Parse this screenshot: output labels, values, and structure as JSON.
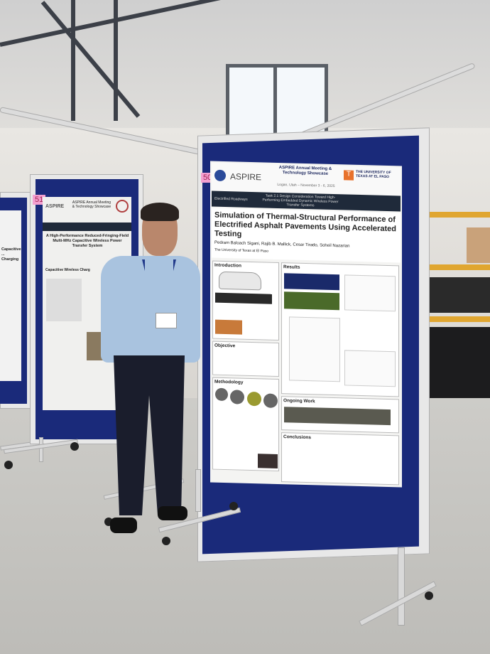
{
  "booths": {
    "right_number": "50",
    "left_number": "51"
  },
  "right_poster": {
    "event_title": "ASPIRE Annual Meeting & Technology Showcase",
    "event_location_date": "Logan, Utah – November 3 - 6, 2025",
    "logo_text": "ASPIRE",
    "university": "THE UNIVERSITY OF TEXAS AT EL PASO",
    "university_logo_letter": "T",
    "band_left": "Electrified Roadways",
    "band_middle": "Task 2.1 Design Consideration Toward High-Performing Embedded Dynamic Wireless Power Transfer Systems",
    "title": "Simulation of Thermal-Structural Performance of Electrified Asphalt Pavements Using Accelerated Testing",
    "authors": "Pedram Baloach Sigani, Rajib B. Mallick, Cesar Tirado, Soheil Nazarian",
    "affiliation": "The University of Texas at El Paso",
    "sections": {
      "introduction": "Introduction",
      "objective": "Objective",
      "methodology": "Methodology",
      "results": "Results",
      "ongoing_work": "Ongoing Work",
      "conclusions": "Conclusions"
    }
  },
  "left_poster": {
    "event_title": "ASPIRE Annual Meeting & Technology Showcase",
    "logo_text": "ASPIRE",
    "title": "A High-Performance Reduced-Fringing-Field Multi-MHz Capacitive Wireless Power Transfer System",
    "section_fragment": "Capacitive Wireless Charg"
  },
  "far_left_poster": {
    "fragment": "Capacitive ... Charging"
  },
  "colors": {
    "board_blue": "#1a2a7a",
    "booth_tag_pink": "#f3a0d0",
    "utep_orange": "#e8722c"
  }
}
